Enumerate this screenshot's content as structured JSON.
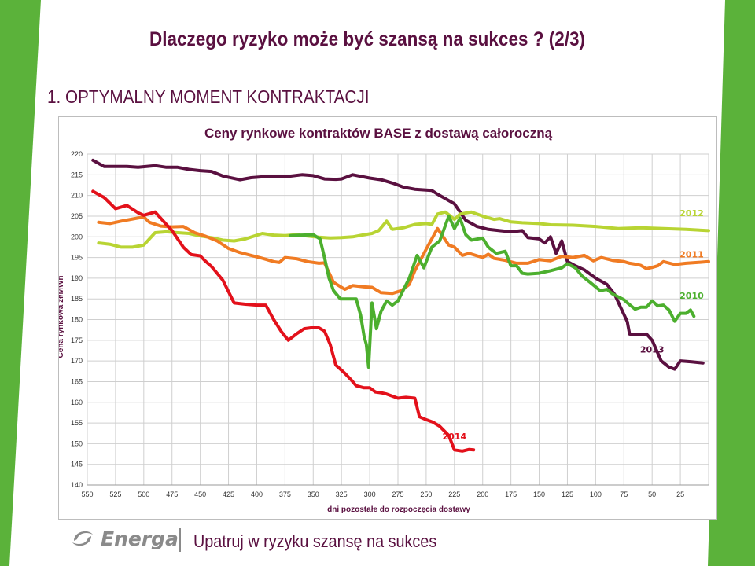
{
  "slide": {
    "title": "Dlaczego ryzyko może być szansą na sukces ? (2/3)",
    "subtitle": "1. OPTYMALNY MOMENT KONTRAKTACJI",
    "tagline": "Upatruj w ryzyku szansę na sukces",
    "logo_text": "Energa",
    "accent_color": "#5a1040",
    "green_color": "#4caf2e"
  },
  "chart_data": {
    "type": "line",
    "title": "Ceny rynkowe kontraktów BASE z dostawą całoroczną",
    "xlabel": "dni pozostałe do rozpoczęcia dostawy",
    "ylabel": "Cena rynkowa zł/MWh",
    "xlim": [
      550,
      0
    ],
    "ylim": [
      140,
      220
    ],
    "x_ticks": [
      550,
      525,
      500,
      475,
      450,
      425,
      400,
      375,
      350,
      325,
      300,
      275,
      250,
      225,
      200,
      175,
      150,
      125,
      100,
      75,
      50,
      25
    ],
    "y_ticks": [
      140,
      145,
      150,
      155,
      160,
      165,
      170,
      175,
      180,
      185,
      190,
      195,
      200,
      205,
      210,
      215,
      220
    ],
    "grid": true,
    "legend": "inline labels at line ends",
    "series": [
      {
        "name": "2013",
        "color": "#5a1040",
        "label_at": [
          50,
          172
        ],
        "points": [
          [
            545,
            218.5
          ],
          [
            535,
            217
          ],
          [
            515,
            217
          ],
          [
            505,
            216.8
          ],
          [
            490,
            217.2
          ],
          [
            480,
            216.8
          ],
          [
            470,
            216.8
          ],
          [
            460,
            216.3
          ],
          [
            450,
            216
          ],
          [
            440,
            215.8
          ],
          [
            430,
            214.7
          ],
          [
            415,
            213.8
          ],
          [
            405,
            214.3
          ],
          [
            395,
            214.5
          ],
          [
            385,
            214.6
          ],
          [
            375,
            214.5
          ],
          [
            360,
            215
          ],
          [
            350,
            214.8
          ],
          [
            340,
            214
          ],
          [
            330,
            213.9
          ],
          [
            325,
            214
          ],
          [
            315,
            215
          ],
          [
            300,
            214.2
          ],
          [
            290,
            213.8
          ],
          [
            280,
            213
          ],
          [
            270,
            212
          ],
          [
            260,
            211.5
          ],
          [
            245,
            211.2
          ],
          [
            240,
            210.3
          ],
          [
            225,
            208
          ],
          [
            220,
            206
          ],
          [
            215,
            204
          ],
          [
            205,
            202.5
          ],
          [
            195,
            201.8
          ],
          [
            185,
            201.5
          ],
          [
            175,
            201.2
          ],
          [
            165,
            201.5
          ],
          [
            160,
            199.8
          ],
          [
            150,
            199.5
          ],
          [
            145,
            198.5
          ],
          [
            140,
            200
          ],
          [
            135,
            196
          ],
          [
            130,
            199
          ],
          [
            125,
            194
          ],
          [
            118,
            193
          ],
          [
            110,
            192
          ],
          [
            100,
            190
          ],
          [
            90,
            188.5
          ],
          [
            83,
            186
          ],
          [
            78,
            183
          ],
          [
            72,
            179.5
          ],
          [
            70,
            176.5
          ],
          [
            65,
            176.3
          ],
          [
            55,
            176.5
          ],
          [
            50,
            175
          ],
          [
            42,
            170
          ],
          [
            35,
            168.5
          ],
          [
            30,
            168
          ],
          [
            25,
            170
          ],
          [
            15,
            169.8
          ],
          [
            5,
            169.5
          ]
        ]
      },
      {
        "name": "2012",
        "color": "#b8d433",
        "label_at": [
          15,
          205
        ],
        "points": [
          [
            540,
            198.5
          ],
          [
            530,
            198.2
          ],
          [
            520,
            197.5
          ],
          [
            510,
            197.5
          ],
          [
            500,
            198
          ],
          [
            490,
            201
          ],
          [
            480,
            201.2
          ],
          [
            470,
            201
          ],
          [
            460,
            200.8
          ],
          [
            450,
            200.2
          ],
          [
            440,
            199.8
          ],
          [
            430,
            199.2
          ],
          [
            420,
            199
          ],
          [
            410,
            199.5
          ],
          [
            402,
            200.2
          ],
          [
            395,
            200.8
          ],
          [
            385,
            200.4
          ],
          [
            375,
            200.3
          ],
          [
            365,
            200.5
          ],
          [
            355,
            200.2
          ],
          [
            345,
            199.9
          ],
          [
            335,
            199.7
          ],
          [
            325,
            199.8
          ],
          [
            315,
            200
          ],
          [
            305,
            200.5
          ],
          [
            298,
            200.8
          ],
          [
            292,
            201.5
          ],
          [
            285,
            203.8
          ],
          [
            280,
            201.8
          ],
          [
            270,
            202.2
          ],
          [
            260,
            203
          ],
          [
            250,
            203.2
          ],
          [
            245,
            203
          ],
          [
            240,
            205.5
          ],
          [
            233,
            206
          ],
          [
            225,
            204.2
          ],
          [
            220,
            205.5
          ],
          [
            210,
            206
          ],
          [
            200,
            205
          ],
          [
            190,
            204.2
          ],
          [
            185,
            204.4
          ],
          [
            175,
            203.6
          ],
          [
            165,
            203.4
          ],
          [
            150,
            203.2
          ],
          [
            140,
            202.9
          ],
          [
            120,
            202.8
          ],
          [
            100,
            202.5
          ],
          [
            80,
            202
          ],
          [
            60,
            202.2
          ],
          [
            40,
            202
          ],
          [
            20,
            201.8
          ],
          [
            0,
            201.5
          ]
        ]
      },
      {
        "name": "2011",
        "color": "#f07b23",
        "label_at": [
          15,
          195
        ],
        "points": [
          [
            540,
            203.5
          ],
          [
            530,
            203.2
          ],
          [
            520,
            203.8
          ],
          [
            510,
            204.3
          ],
          [
            500,
            204.8
          ],
          [
            495,
            203.5
          ],
          [
            485,
            202.6
          ],
          [
            475,
            202.4
          ],
          [
            465,
            202.5
          ],
          [
            455,
            201
          ],
          [
            445,
            200.1
          ],
          [
            435,
            199
          ],
          [
            425,
            197.2
          ],
          [
            415,
            196.2
          ],
          [
            405,
            195.5
          ],
          [
            395,
            194.8
          ],
          [
            385,
            194
          ],
          [
            380,
            193.8
          ],
          [
            375,
            195
          ],
          [
            365,
            194.7
          ],
          [
            355,
            194
          ],
          [
            345,
            193.6
          ],
          [
            340,
            193.7
          ],
          [
            336,
            191.3
          ],
          [
            332,
            189
          ],
          [
            328,
            188.3
          ],
          [
            322,
            187.3
          ],
          [
            315,
            188.2
          ],
          [
            305,
            187.9
          ],
          [
            298,
            187.8
          ],
          [
            290,
            186.5
          ],
          [
            280,
            186.3
          ],
          [
            272,
            187
          ],
          [
            265,
            188.5
          ],
          [
            260,
            191.8
          ],
          [
            250,
            197
          ],
          [
            245,
            199.5
          ],
          [
            240,
            202
          ],
          [
            235,
            200
          ],
          [
            230,
            198
          ],
          [
            225,
            197.5
          ],
          [
            218,
            195.5
          ],
          [
            212,
            196
          ],
          [
            200,
            195
          ],
          [
            195,
            195.8
          ],
          [
            190,
            194.8
          ],
          [
            180,
            194.3
          ],
          [
            170,
            193.6
          ],
          [
            160,
            193.6
          ],
          [
            150,
            194.5
          ],
          [
            140,
            194.2
          ],
          [
            130,
            195.3
          ],
          [
            120,
            195
          ],
          [
            110,
            195.5
          ],
          [
            102,
            194.2
          ],
          [
            95,
            195
          ],
          [
            85,
            194.3
          ],
          [
            75,
            194
          ],
          [
            70,
            193.6
          ],
          [
            65,
            193.4
          ],
          [
            60,
            193.1
          ],
          [
            55,
            192.3
          ],
          [
            50,
            192.6
          ],
          [
            45,
            193
          ],
          [
            40,
            194
          ],
          [
            30,
            193.3
          ],
          [
            20,
            193.6
          ],
          [
            10,
            193.8
          ],
          [
            0,
            194
          ]
        ]
      },
      {
        "name": "2010",
        "color": "#4caf2e",
        "label_at": [
          15,
          185
        ],
        "points": [
          [
            370,
            200.3
          ],
          [
            360,
            200.4
          ],
          [
            350,
            200.5
          ],
          [
            344,
            199.5
          ],
          [
            340,
            195
          ],
          [
            336,
            190
          ],
          [
            332,
            187
          ],
          [
            326,
            185
          ],
          [
            312,
            185
          ],
          [
            308,
            181
          ],
          [
            305,
            176
          ],
          [
            303,
            174
          ],
          [
            301,
            168.5
          ],
          [
            298,
            184
          ],
          [
            294,
            177.8
          ],
          [
            290,
            182
          ],
          [
            285,
            184.5
          ],
          [
            280,
            183.5
          ],
          [
            275,
            184.5
          ],
          [
            265,
            190
          ],
          [
            258,
            195.5
          ],
          [
            252,
            192.5
          ],
          [
            245,
            197.5
          ],
          [
            238,
            199
          ],
          [
            230,
            205
          ],
          [
            225,
            202
          ],
          [
            220,
            204.5
          ],
          [
            215,
            200.5
          ],
          [
            210,
            199.2
          ],
          [
            200,
            199.7
          ],
          [
            195,
            197.5
          ],
          [
            188,
            196
          ],
          [
            180,
            196.5
          ],
          [
            175,
            193
          ],
          [
            170,
            193
          ],
          [
            165,
            191.2
          ],
          [
            160,
            191
          ],
          [
            150,
            191.2
          ],
          [
            140,
            191.8
          ],
          [
            130,
            192.5
          ],
          [
            125,
            193.5
          ],
          [
            118,
            192.5
          ],
          [
            112,
            190.5
          ],
          [
            105,
            189
          ],
          [
            96,
            187
          ],
          [
            90,
            187.3
          ],
          [
            85,
            186.2
          ],
          [
            80,
            185.5
          ],
          [
            75,
            184.8
          ],
          [
            70,
            183.6
          ],
          [
            65,
            182.5
          ],
          [
            60,
            183
          ],
          [
            55,
            183
          ],
          [
            50,
            184.5
          ],
          [
            45,
            183.3
          ],
          [
            40,
            183.5
          ],
          [
            35,
            182.3
          ],
          [
            30,
            179.6
          ],
          [
            25,
            181.5
          ],
          [
            20,
            181.5
          ],
          [
            16,
            182.3
          ],
          [
            13,
            180.8
          ]
        ]
      },
      {
        "name": "2014",
        "color": "#e3111b",
        "label_at": [
          225,
          151
        ],
        "points": [
          [
            545,
            211
          ],
          [
            535,
            209.5
          ],
          [
            525,
            206.8
          ],
          [
            515,
            207.6
          ],
          [
            505,
            205.8
          ],
          [
            500,
            205.2
          ],
          [
            490,
            206
          ],
          [
            480,
            203
          ],
          [
            475,
            201.5
          ],
          [
            465,
            197.5
          ],
          [
            458,
            195.7
          ],
          [
            450,
            195.4
          ],
          [
            445,
            194
          ],
          [
            440,
            192.8
          ],
          [
            430,
            189.5
          ],
          [
            420,
            184
          ],
          [
            410,
            183.7
          ],
          [
            400,
            183.5
          ],
          [
            392,
            183.5
          ],
          [
            385,
            180
          ],
          [
            378,
            177
          ],
          [
            372,
            175
          ],
          [
            365,
            176.5
          ],
          [
            358,
            177.8
          ],
          [
            352,
            178
          ],
          [
            345,
            178
          ],
          [
            340,
            177.2
          ],
          [
            335,
            174
          ],
          [
            330,
            169
          ],
          [
            322,
            167
          ],
          [
            316,
            165.3
          ],
          [
            312,
            164
          ],
          [
            305,
            163.5
          ],
          [
            300,
            163.5
          ],
          [
            295,
            162.5
          ],
          [
            290,
            162.3
          ],
          [
            285,
            162
          ],
          [
            280,
            161.5
          ],
          [
            275,
            161
          ],
          [
            268,
            161.2
          ],
          [
            260,
            161
          ],
          [
            256,
            156.5
          ],
          [
            250,
            155.8
          ],
          [
            244,
            155.2
          ],
          [
            238,
            154.2
          ],
          [
            230,
            152
          ],
          [
            225,
            148.5
          ],
          [
            218,
            148.2
          ],
          [
            212,
            148.6
          ],
          [
            208,
            148.5
          ]
        ]
      }
    ]
  }
}
